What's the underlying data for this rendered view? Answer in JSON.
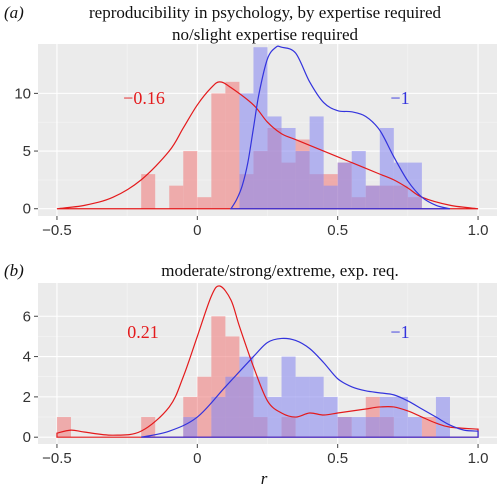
{
  "xlabel": "r",
  "colors": {
    "red": "#e41a1c",
    "blue": "#3333dd",
    "red_fill": "#f08080",
    "blue_fill": "#8c8cf0"
  },
  "chart_data": [
    {
      "type": "histogram+density",
      "panel_letter": "(a)",
      "title": "reproducibility in psychology, by expertise required",
      "subtitle": "no/slight expertise required",
      "xlim": [
        -0.5,
        1.0
      ],
      "ylim": [
        0,
        14
      ],
      "x_ticks": [
        -0.5,
        0,
        0.5,
        1.0
      ],
      "x_tick_labels": [
        "−0.5",
        "0",
        "0.5",
        "1.0"
      ],
      "y_ticks": [
        0,
        5,
        10
      ],
      "y_tick_labels": [
        "0",
        "5",
        "10"
      ],
      "bin_width": 0.05,
      "series": [
        {
          "color": "red",
          "annotation": "−0.16",
          "bins": [
            {
              "x0": -0.25,
              "count": 0
            },
            {
              "x0": -0.2,
              "count": 3
            },
            {
              "x0": -0.1,
              "count": 2
            },
            {
              "x0": -0.05,
              "count": 5
            },
            {
              "x0": 0.0,
              "count": 1
            },
            {
              "x0": 0.05,
              "count": 10
            },
            {
              "x0": 0.1,
              "count": 11
            },
            {
              "x0": 0.15,
              "count": 3
            },
            {
              "x0": 0.2,
              "count": 5
            },
            {
              "x0": 0.25,
              "count": 7
            },
            {
              "x0": 0.3,
              "count": 4
            },
            {
              "x0": 0.35,
              "count": 6
            },
            {
              "x0": 0.4,
              "count": 3
            },
            {
              "x0": 0.45,
              "count": 3
            },
            {
              "x0": 0.5,
              "count": 4
            },
            {
              "x0": 0.55,
              "count": 1
            },
            {
              "x0": 0.6,
              "count": 2
            },
            {
              "x0": 0.65,
              "count": 2
            },
            {
              "x0": 0.7,
              "count": 2
            },
            {
              "x0": 0.75,
              "count": 1
            }
          ],
          "density": [
            [
              -0.5,
              0
            ],
            [
              -0.4,
              0.3
            ],
            [
              -0.3,
              1
            ],
            [
              -0.2,
              2.5
            ],
            [
              -0.1,
              5
            ],
            [
              -0.05,
              7
            ],
            [
              0,
              9
            ],
            [
              0.05,
              10.5
            ],
            [
              0.08,
              11
            ],
            [
              0.12,
              10.5
            ],
            [
              0.2,
              9
            ],
            [
              0.25,
              7.5
            ],
            [
              0.3,
              6.5
            ],
            [
              0.35,
              6
            ],
            [
              0.4,
              5.5
            ],
            [
              0.45,
              5
            ],
            [
              0.5,
              4.5
            ],
            [
              0.55,
              4
            ],
            [
              0.6,
              3.5
            ],
            [
              0.65,
              3
            ],
            [
              0.7,
              2.5
            ],
            [
              0.75,
              1.8
            ],
            [
              0.8,
              1
            ],
            [
              0.9,
              0.3
            ],
            [
              1.0,
              0
            ]
          ]
        },
        {
          "color": "blue",
          "annotation": "−1",
          "bins": [
            {
              "x0": 0.15,
              "count": 10
            },
            {
              "x0": 0.2,
              "count": 14
            },
            {
              "x0": 0.25,
              "count": 8
            },
            {
              "x0": 0.3,
              "count": 7
            },
            {
              "x0": 0.35,
              "count": 5
            },
            {
              "x0": 0.4,
              "count": 8
            },
            {
              "x0": 0.45,
              "count": 2
            },
            {
              "x0": 0.5,
              "count": 4
            },
            {
              "x0": 0.55,
              "count": 5
            },
            {
              "x0": 0.6,
              "count": 2
            },
            {
              "x0": 0.65,
              "count": 7
            },
            {
              "x0": 0.7,
              "count": 4
            },
            {
              "x0": 0.75,
              "count": 4
            }
          ],
          "density": [
            [
              0.12,
              0
            ],
            [
              0.14,
              0.8
            ],
            [
              0.16,
              2
            ],
            [
              0.18,
              4
            ],
            [
              0.2,
              7
            ],
            [
              0.22,
              10
            ],
            [
              0.25,
              13
            ],
            [
              0.28,
              14
            ],
            [
              0.3,
              14
            ],
            [
              0.35,
              13.5
            ],
            [
              0.4,
              11
            ],
            [
              0.45,
              9.2
            ],
            [
              0.5,
              8.5
            ],
            [
              0.55,
              8.4
            ],
            [
              0.6,
              8
            ],
            [
              0.65,
              6.8
            ],
            [
              0.7,
              4.5
            ],
            [
              0.75,
              2.4
            ],
            [
              0.8,
              1
            ],
            [
              0.85,
              0.3
            ],
            [
              0.9,
              0
            ]
          ]
        }
      ]
    },
    {
      "type": "histogram+density",
      "panel_letter": "(b)",
      "title": "moderate/strong/extreme, exp. req.",
      "xlim": [
        -0.5,
        1.0
      ],
      "ylim": [
        0,
        7.5
      ],
      "x_ticks": [
        -0.5,
        0,
        0.5,
        1.0
      ],
      "x_tick_labels": [
        "−0.5",
        "0",
        "0.5",
        "1.0"
      ],
      "y_ticks": [
        0,
        2,
        4,
        6
      ],
      "y_tick_labels": [
        "0",
        "2",
        "4",
        "6"
      ],
      "bin_width": 0.05,
      "series": [
        {
          "color": "red",
          "annotation": "0.21",
          "bins": [
            {
              "x0": -0.5,
              "count": 1
            },
            {
              "x0": -0.2,
              "count": 1
            },
            {
              "x0": -0.05,
              "count": 2
            },
            {
              "x0": 0.0,
              "count": 3
            },
            {
              "x0": 0.05,
              "count": 6
            },
            {
              "x0": 0.1,
              "count": 5
            },
            {
              "x0": 0.15,
              "count": 3
            },
            {
              "x0": 0.2,
              "count": 1
            },
            {
              "x0": 0.3,
              "count": 1
            },
            {
              "x0": 0.5,
              "count": 1
            },
            {
              "x0": 0.6,
              "count": 2
            },
            {
              "x0": 0.65,
              "count": 1
            },
            {
              "x0": 0.8,
              "count": 1
            }
          ],
          "density": [
            [
              -0.5,
              0.2
            ],
            [
              -0.45,
              0.35
            ],
            [
              -0.4,
              0.25
            ],
            [
              -0.3,
              0.1
            ],
            [
              -0.2,
              0.3
            ],
            [
              -0.1,
              1.5
            ],
            [
              -0.05,
              3
            ],
            [
              0,
              5
            ],
            [
              0.05,
              7
            ],
            [
              0.08,
              7.5
            ],
            [
              0.12,
              6.8
            ],
            [
              0.15,
              5.5
            ],
            [
              0.2,
              3.5
            ],
            [
              0.25,
              1.8
            ],
            [
              0.3,
              1.2
            ],
            [
              0.35,
              1
            ],
            [
              0.4,
              1.2
            ],
            [
              0.45,
              1.1
            ],
            [
              0.5,
              1.2
            ],
            [
              0.55,
              1.3
            ],
            [
              0.6,
              1.4
            ],
            [
              0.65,
              1.5
            ],
            [
              0.7,
              1.5
            ],
            [
              0.75,
              1.3
            ],
            [
              0.8,
              1
            ],
            [
              0.85,
              0.7
            ],
            [
              0.9,
              0.5
            ],
            [
              1.0,
              0.4
            ]
          ]
        },
        {
          "color": "blue",
          "annotation": "−1",
          "bins": [
            {
              "x0": -0.05,
              "count": 1
            },
            {
              "x0": 0.05,
              "count": 2
            },
            {
              "x0": 0.1,
              "count": 3
            },
            {
              "x0": 0.15,
              "count": 4
            },
            {
              "x0": 0.2,
              "count": 3
            },
            {
              "x0": 0.25,
              "count": 2
            },
            {
              "x0": 0.3,
              "count": 4
            },
            {
              "x0": 0.35,
              "count": 3
            },
            {
              "x0": 0.4,
              "count": 3
            },
            {
              "x0": 0.45,
              "count": 2
            },
            {
              "x0": 0.5,
              "count": 1
            },
            {
              "x0": 0.55,
              "count": 1
            },
            {
              "x0": 0.6,
              "count": 1
            },
            {
              "x0": 0.65,
              "count": 2
            },
            {
              "x0": 0.7,
              "count": 2
            },
            {
              "x0": 0.75,
              "count": 1
            },
            {
              "x0": 0.85,
              "count": 2
            }
          ],
          "density": [
            [
              -0.2,
              0
            ],
            [
              -0.1,
              0.3
            ],
            [
              0,
              1
            ],
            [
              0.1,
              2.5
            ],
            [
              0.2,
              4
            ],
            [
              0.25,
              4.7
            ],
            [
              0.3,
              4.9
            ],
            [
              0.35,
              4.8
            ],
            [
              0.4,
              4.4
            ],
            [
              0.45,
              3.7
            ],
            [
              0.5,
              2.9
            ],
            [
              0.55,
              2.5
            ],
            [
              0.6,
              2.3
            ],
            [
              0.65,
              2.2
            ],
            [
              0.7,
              2.1
            ],
            [
              0.75,
              1.8
            ],
            [
              0.8,
              1.4
            ],
            [
              0.85,
              1
            ],
            [
              0.9,
              0.6
            ],
            [
              0.95,
              0.35
            ],
            [
              1.0,
              0.3
            ]
          ]
        }
      ]
    }
  ]
}
